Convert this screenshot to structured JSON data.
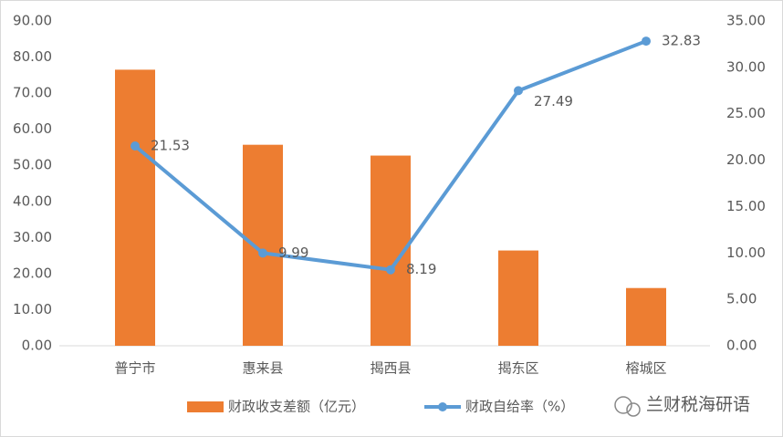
{
  "chart_data": {
    "type": "bar-line",
    "categories": [
      "普宁市",
      "惠来县",
      "揭西县",
      "揭东区",
      "榕城区"
    ],
    "series": [
      {
        "name": "财政收支差额（亿元）",
        "color": "#ed7d31",
        "type": "bar",
        "values": [
          76.5,
          55.7,
          52.7,
          26.4,
          16.0
        ]
      },
      {
        "name": "财政自给率（%）",
        "color": "#5b9bd5",
        "type": "line",
        "axis": "y2",
        "values": [
          21.53,
          9.99,
          8.19,
          27.49,
          32.83
        ]
      }
    ],
    "ylim": [
      0,
      90
    ],
    "yticks": [
      {
        "value": 0,
        "label": "0.00"
      },
      {
        "value": 10,
        "label": "10.00"
      },
      {
        "value": 20,
        "label": "20.00"
      },
      {
        "value": 30,
        "label": "30.00"
      },
      {
        "value": 40,
        "label": "40.00"
      },
      {
        "value": 50,
        "label": "50.00"
      },
      {
        "value": 60,
        "label": "60.00"
      },
      {
        "value": 70,
        "label": "70.00"
      },
      {
        "value": 80,
        "label": "80.00"
      },
      {
        "value": 90,
        "label": "90.00"
      }
    ],
    "y2lim": [
      0,
      35
    ],
    "y2ticks": [
      {
        "value": 0,
        "label": "0.00"
      },
      {
        "value": 5,
        "label": "5.00"
      },
      {
        "value": 10,
        "label": "10.00"
      },
      {
        "value": 15,
        "label": "15.00"
      },
      {
        "value": 20,
        "label": "20.00"
      },
      {
        "value": 25,
        "label": "25.00"
      },
      {
        "value": 30,
        "label": "30.00"
      },
      {
        "value": 35,
        "label": "35.00"
      }
    ],
    "grid": false,
    "legend": "bottom",
    "watermark": "兰财税海研语"
  }
}
